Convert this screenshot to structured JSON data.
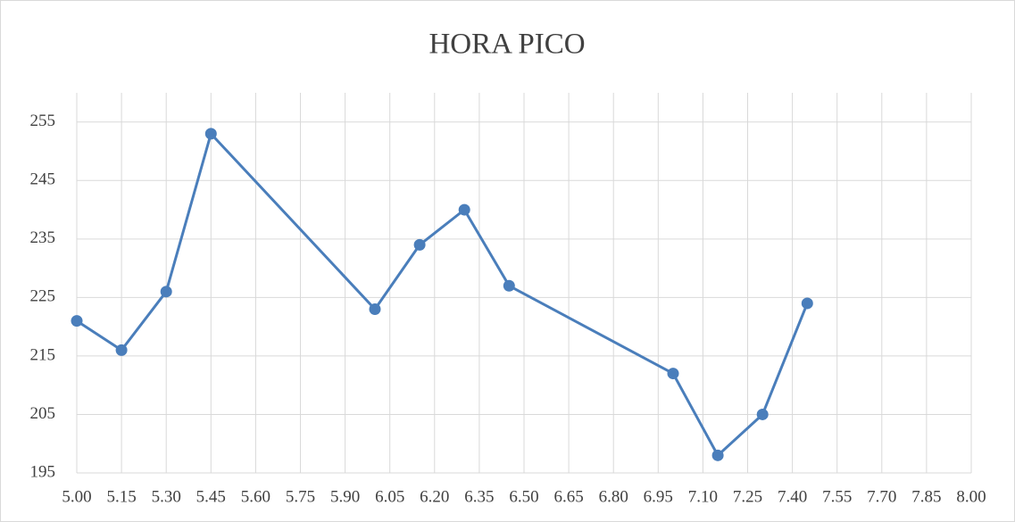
{
  "chart_data": {
    "type": "line",
    "title": "HORA PICO",
    "x": [
      5.0,
      5.15,
      5.3,
      5.45,
      6.0,
      6.15,
      6.3,
      6.45,
      7.0,
      7.15,
      7.3,
      7.45
    ],
    "series": [
      {
        "color": "#4a7ebb",
        "values": [
          221,
          216,
          226,
          253,
          223,
          234,
          240,
          227,
          212,
          198,
          205,
          224
        ]
      }
    ],
    "xlim": [
      5.0,
      8.0
    ],
    "xticks": [
      {
        "value": 5.0,
        "label": "5.00"
      },
      {
        "value": 5.15,
        "label": "5.15"
      },
      {
        "value": 5.3,
        "label": "5.30"
      },
      {
        "value": 5.45,
        "label": "5.45"
      },
      {
        "value": 5.6,
        "label": "5.60"
      },
      {
        "value": 5.75,
        "label": "5.75"
      },
      {
        "value": 5.9,
        "label": "5.90"
      },
      {
        "value": 6.05,
        "label": "6.05"
      },
      {
        "value": 6.2,
        "label": "6.20"
      },
      {
        "value": 6.35,
        "label": "6.35"
      },
      {
        "value": 6.5,
        "label": "6.50"
      },
      {
        "value": 6.65,
        "label": "6.65"
      },
      {
        "value": 6.8,
        "label": "6.80"
      },
      {
        "value": 6.95,
        "label": "6.95"
      },
      {
        "value": 7.1,
        "label": "7.10"
      },
      {
        "value": 7.25,
        "label": "7.25"
      },
      {
        "value": 7.4,
        "label": "7.40"
      },
      {
        "value": 7.55,
        "label": "7.55"
      },
      {
        "value": 7.7,
        "label": "7.70"
      },
      {
        "value": 7.85,
        "label": "7.85"
      },
      {
        "value": 8.0,
        "label": "8.00"
      }
    ],
    "ylim": [
      195,
      260
    ],
    "yticks": [
      195,
      205,
      215,
      225,
      235,
      245,
      255
    ],
    "grid": true
  }
}
